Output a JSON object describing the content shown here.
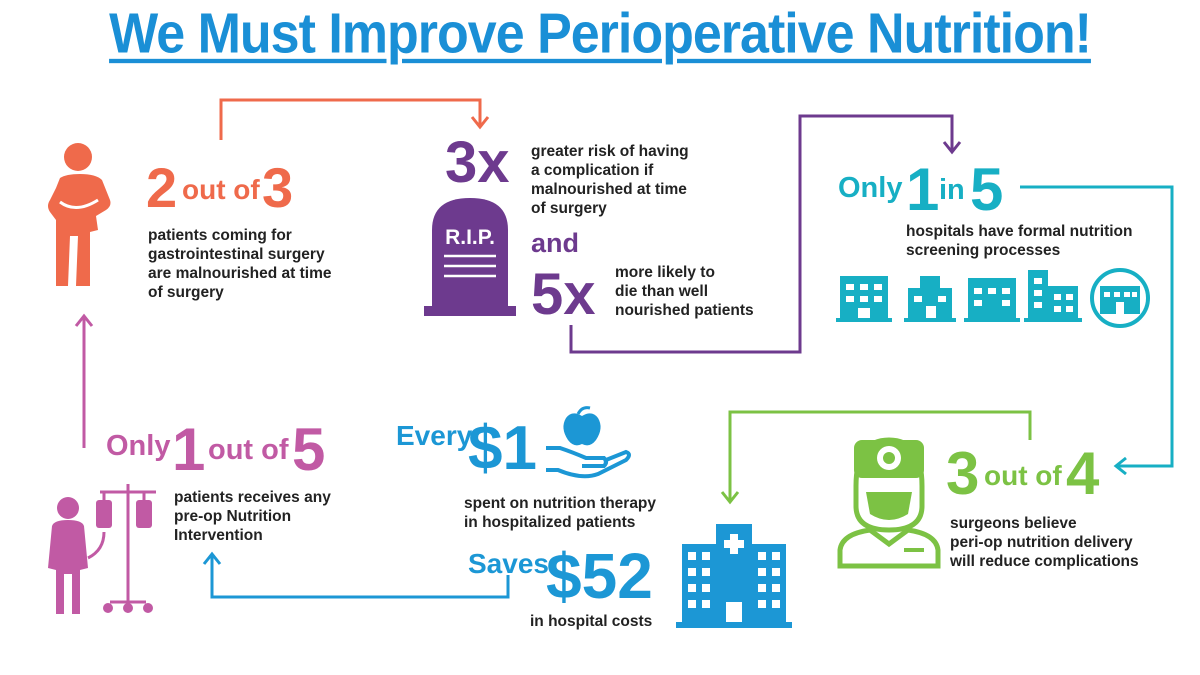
{
  "title": "We Must Improve Perioperative Nutrition!",
  "colors": {
    "orange": "#ef6a4b",
    "purple": "#6d3a8e",
    "teal": "#17afc4",
    "green": "#7cc244",
    "pink": "#c15aa4",
    "blue": "#1c97d5",
    "title_blue": "#1a8fd6"
  },
  "stat1": {
    "num1": "2",
    "mid": "out of",
    "num2": "3",
    "text": [
      "patients coming for",
      "gastrointestinal surgery",
      "are malnourished at time",
      "of surgery"
    ],
    "icon": "patient-stomach-pain-icon"
  },
  "stat2": {
    "big1": "3x",
    "text1": [
      "greater risk of having",
      "a complication if",
      "malnourished at time",
      "of surgery"
    ],
    "and": "and",
    "big2": "5x",
    "text2": [
      "more likely to",
      "die than well",
      "nourished patients"
    ],
    "tomb_label": "R.I.P.",
    "icon": "tombstone-icon"
  },
  "stat3": {
    "prefix": "Only",
    "num1": "1",
    "mid": "in",
    "num2": "5",
    "text": [
      "hospitals have formal nutrition",
      "screening processes"
    ],
    "icon": "hospital-buildings-icon"
  },
  "stat4": {
    "num1": "3",
    "mid": "out of",
    "num2": "4",
    "text": [
      "surgeons believe",
      "peri-op nutrition delivery",
      "will reduce complications"
    ],
    "icon": "surgeon-icon"
  },
  "stat5": {
    "every": "Every",
    "amount1": "$1",
    "text1": [
      "spent on nutrition therapy",
      "in hospitalized patients"
    ],
    "saves": "Saves",
    "amount2": "$52",
    "text2": "in hospital costs",
    "icon1": "apple-in-hand-icon",
    "icon2": "hospital-building-icon"
  },
  "stat6": {
    "prefix": "Only",
    "num1": "1",
    "mid": "out of",
    "num2": "5",
    "text": [
      "patients receives any",
      "pre-op Nutrition",
      "Intervention"
    ],
    "icon": "patient-iv-drip-icon"
  }
}
